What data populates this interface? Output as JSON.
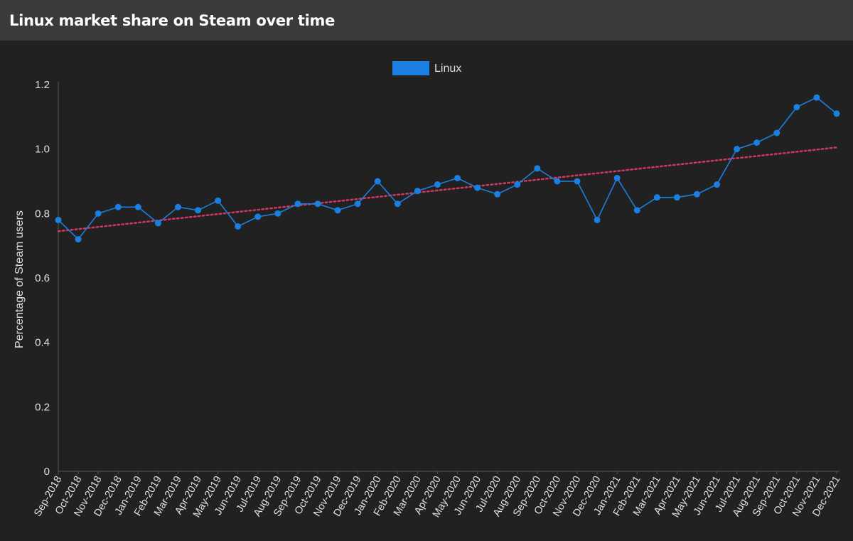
{
  "header": {
    "title": "Linux market share on Steam over time"
  },
  "colors": {
    "background": "#212121",
    "header_background": "#3a3a3a",
    "series": "#1a7fe0",
    "trendline": "#d0375f",
    "text": "#e0e0e0",
    "axis": "#555555"
  },
  "chart_data": {
    "type": "line",
    "title": "",
    "xlabel": "",
    "ylabel": "Percentage of Steam users",
    "ylim": [
      0,
      1.2
    ],
    "yticks": [
      "0",
      "0.2",
      "0.4",
      "0.6",
      "0.8",
      "1.0",
      "1.2"
    ],
    "grid": false,
    "legend_position": "top-center",
    "categories": [
      "Sep-2018",
      "Oct-2018",
      "Nov-2018",
      "Dec-2018",
      "Jan-2019",
      "Feb-2019",
      "Mar-2019",
      "Apr-2019",
      "May-2019",
      "Jun-2019",
      "Jul-2019",
      "Aug-2019",
      "Sep-2019",
      "Oct-2019",
      "Nov-2019",
      "Dec-2019",
      "Jan-2020",
      "Feb-2020",
      "Mar-2020",
      "Apr-2020",
      "May-2020",
      "Jun-2020",
      "Jul-2020",
      "Aug-2020",
      "Sep-2020",
      "Oct-2020",
      "Nov-2020",
      "Dec-2020",
      "Jan-2021",
      "Feb-2021",
      "Mar-2021",
      "Apr-2021",
      "May-2021",
      "Jun-2021",
      "Jul-2021",
      "Aug-2021",
      "Sep-2021",
      "Oct-2021",
      "Nov-2021",
      "Dec-2021"
    ],
    "series": [
      {
        "name": "Linux",
        "values": [
          0.78,
          0.72,
          0.8,
          0.82,
          0.82,
          0.77,
          0.82,
          0.81,
          0.84,
          0.76,
          0.79,
          0.8,
          0.83,
          0.83,
          0.81,
          0.83,
          0.9,
          0.83,
          0.87,
          0.89,
          0.91,
          0.88,
          0.86,
          0.89,
          0.94,
          0.9,
          0.9,
          0.78,
          0.91,
          0.81,
          0.85,
          0.85,
          0.86,
          0.89,
          1.0,
          1.02,
          1.05,
          1.13,
          1.16,
          1.11
        ]
      }
    ],
    "trendline": {
      "start": 0.745,
      "end": 1.005,
      "style": "dotted"
    }
  }
}
